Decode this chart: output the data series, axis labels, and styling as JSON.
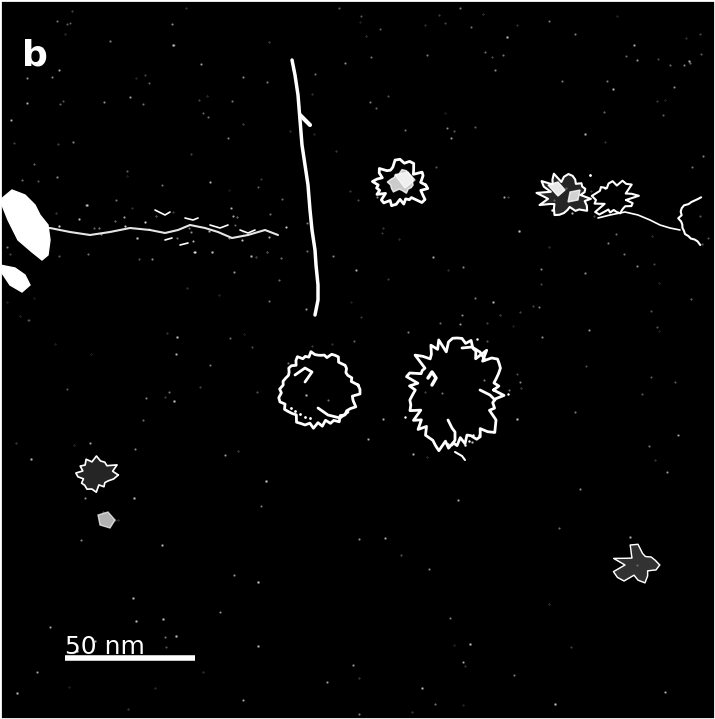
{
  "background_color": "#000000",
  "white": "#ffffff",
  "label_text": "b",
  "label_fontsize": 26,
  "scalebar_text": "50 nm",
  "scalebar_fontsize": 18,
  "fig_width": 7.15,
  "fig_height": 7.19,
  "dpi": 100
}
